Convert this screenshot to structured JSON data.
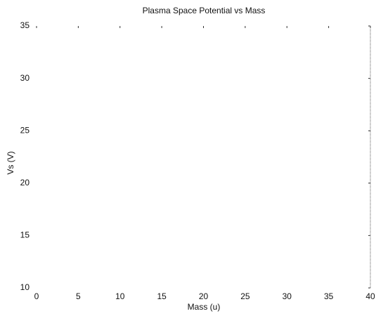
{
  "chart_data": {
    "type": "line",
    "title": "Plasma Space Potential vs Mass",
    "x_label": "Mass (u)",
    "y_label": "Vs (V)",
    "xlim": [
      0,
      40
    ],
    "xticks": [
      0,
      5,
      10,
      15,
      20,
      25,
      30,
      35,
      40
    ],
    "ylim": [
      10,
      35
    ],
    "yticks": [
      10,
      15,
      20,
      25,
      30,
      35
    ]
  }
}
